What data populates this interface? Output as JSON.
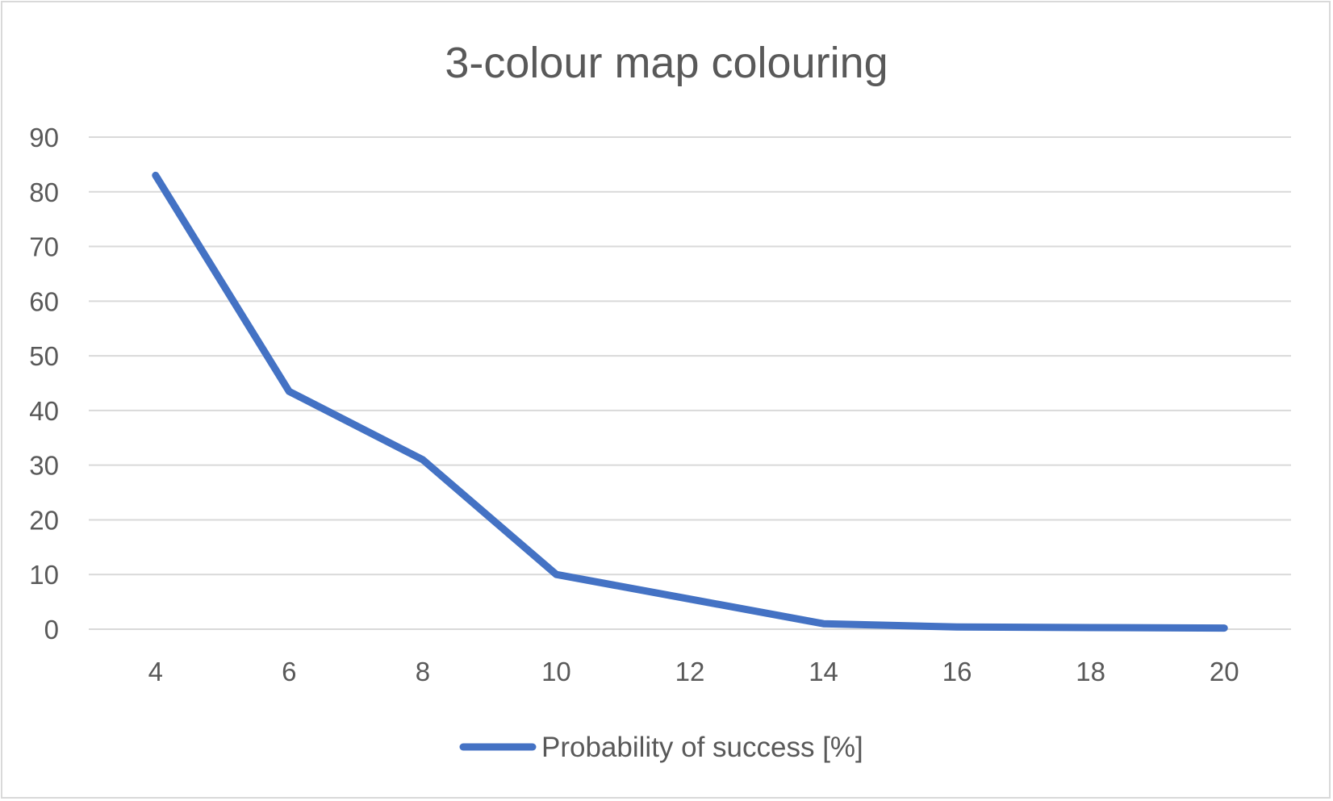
{
  "chart_data": {
    "type": "line",
    "title": "3-colour map colouring",
    "xlabel": "",
    "ylabel": "",
    "categories": [
      "4",
      "6",
      "8",
      "10",
      "12",
      "14",
      "16",
      "18",
      "20"
    ],
    "series": [
      {
        "name": "Probability of success [%]",
        "values": [
          83,
          43.5,
          31,
          10,
          5.5,
          1,
          0.4,
          0.3,
          0.2
        ]
      }
    ],
    "y_ticks": [
      "0",
      "10",
      "20",
      "30",
      "40",
      "50",
      "60",
      "70",
      "80",
      "90"
    ],
    "ylim": [
      0,
      90
    ],
    "grid": true,
    "legend_position": "bottom",
    "colors": {
      "series": "#4472c4",
      "grid": "#d9d9d9",
      "text": "#595959"
    }
  }
}
